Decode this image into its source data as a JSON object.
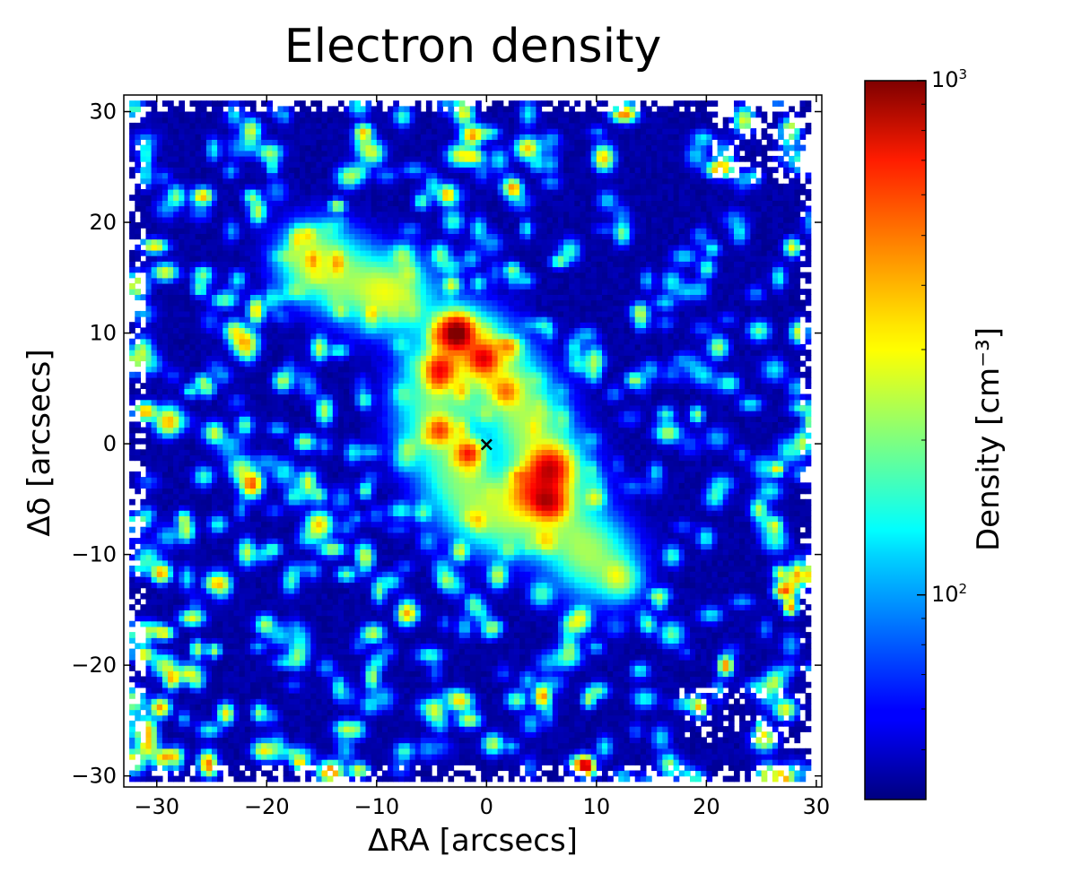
{
  "chart_data": {
    "type": "heatmap",
    "title": "Electron density",
    "xlabel": "ΔRA [arcsecs]",
    "ylabel": "Δδ [arcsecs]",
    "xlim": [
      -33,
      30.5
    ],
    "ylim": [
      -31,
      31.5
    ],
    "xticks": [
      -30,
      -20,
      -10,
      0,
      10,
      20,
      30
    ],
    "yticks": [
      -30,
      -20,
      -10,
      0,
      10,
      20,
      30
    ],
    "xtick_labels": [
      "−30",
      "−20",
      "−10",
      "0",
      "10",
      "20",
      "30"
    ],
    "ytick_labels": [
      "−30",
      "−20",
      "−10",
      "0",
      "10",
      "20",
      "30"
    ],
    "colorbar": {
      "label": "Density [cm⁻³]",
      "scale": "log",
      "colormap": "jet",
      "vmin": 40,
      "vmax": 1000,
      "ticks": [
        {
          "value": 1000,
          "base": "10",
          "exp": "3"
        },
        {
          "value": 100,
          "base": "10",
          "exp": "2"
        }
      ]
    },
    "marker": {
      "symbol": "×",
      "x": 0,
      "y": 0,
      "color": "#000000"
    },
    "features": [
      {
        "x": -16.5,
        "y": 16.5,
        "peak": 160,
        "sigma": 1.8
      },
      {
        "x": -9.5,
        "y": 13.5,
        "peak": 140,
        "sigma": 1.6
      },
      {
        "x": -3,
        "y": 9.8,
        "peak": 950,
        "sigma": 1.0
      },
      {
        "x": -4.5,
        "y": 6.5,
        "peak": 520,
        "sigma": 0.9
      },
      {
        "x": -0.5,
        "y": 7.5,
        "peak": 520,
        "sigma": 0.9
      },
      {
        "x": 1.5,
        "y": 4.5,
        "peak": 300,
        "sigma": 0.8
      },
      {
        "x": -4.5,
        "y": 1,
        "peak": 420,
        "sigma": 0.8
      },
      {
        "x": -2,
        "y": -1,
        "peak": 420,
        "sigma": 0.8
      },
      {
        "x": 5.5,
        "y": -2.5,
        "peak": 620,
        "sigma": 1.2
      },
      {
        "x": 5.5,
        "y": -5.5,
        "peak": 560,
        "sigma": 1.0
      },
      {
        "x": 3.5,
        "y": -4.5,
        "peak": 320,
        "sigma": 1.2
      },
      {
        "x": 12,
        "y": -12.5,
        "peak": 170,
        "sigma": 1.1
      }
    ]
  }
}
